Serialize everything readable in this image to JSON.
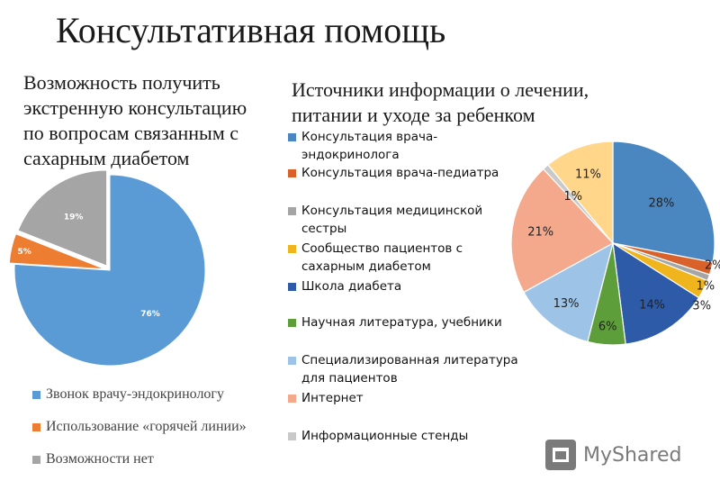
{
  "page": {
    "title": "Консультативная помощь"
  },
  "watermark": {
    "text": "MyShared"
  },
  "chart_data": [
    {
      "type": "pie",
      "title": "Возможность получить экстренную консультацию по вопросам связанным с сахарным диабетом",
      "legend_position": "bottom",
      "slices": [
        {
          "label": "Звонок врачу-эндокринологу",
          "value": 76,
          "display": "76%",
          "color": "#5b9bd5"
        },
        {
          "label": "Использование «горячей линии»",
          "value": 5,
          "display": "5%",
          "color": "#ed7d31"
        },
        {
          "label": "Возможности нет",
          "value": 19,
          "display": "19%",
          "color": "#a5a5a5"
        }
      ]
    },
    {
      "type": "pie",
      "title": "Источники информации о лечении, питании и уходе за ребенком",
      "legend_position": "left",
      "slices": [
        {
          "label": "Консультация врача-эндокринолога",
          "value": 28,
          "display": "28%",
          "color": "#4a86c0"
        },
        {
          "label": "Консультация врача-педиатра",
          "value": 2,
          "display": "2%",
          "color": "#d9622b"
        },
        {
          "label": "Консультация медицинской сестры",
          "value": 1,
          "display": "1%",
          "color": "#a5a5a5"
        },
        {
          "label": "Сообщество пациентов с сахарным диабетом",
          "value": 3,
          "display": "3%",
          "color": "#f0b41c"
        },
        {
          "label": "Школа диабета",
          "value": 14,
          "display": "14%",
          "color": "#2e5ba8"
        },
        {
          "label": "Научная литература, учебники",
          "value": 6,
          "display": "6%",
          "color": "#5e9e3a"
        },
        {
          "label": "Специализированная литература для пациентов",
          "value": 13,
          "display": "13%",
          "color": "#9dc3e6"
        },
        {
          "label": "Интернет",
          "value": 21,
          "display": "21%",
          "color": "#f4a98c"
        },
        {
          "label": "Информационные стенды",
          "value": 1,
          "display": "1%",
          "color": "#c9c9c9"
        },
        {
          "label": "",
          "value": 11,
          "display": "11%",
          "color": "#ffd68a"
        }
      ]
    }
  ]
}
